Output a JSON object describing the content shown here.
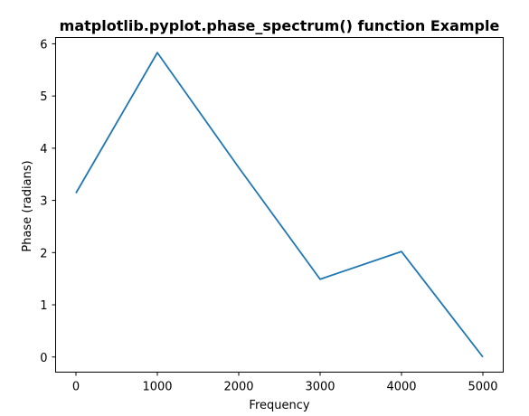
{
  "chart_data": {
    "type": "line",
    "title": "matplotlib.pyplot.phase_spectrum() function Example",
    "xlabel": "Frequency",
    "ylabel": "Phase (radians)",
    "xlim": [
      -250,
      5250
    ],
    "ylim": [
      -0.29,
      6.12
    ],
    "xticks": [
      0,
      1000,
      2000,
      3000,
      4000,
      5000
    ],
    "xtick_labels": [
      "0",
      "1000",
      "2000",
      "3000",
      "4000",
      "5000"
    ],
    "yticks": [
      0,
      1,
      2,
      3,
      4,
      5,
      6
    ],
    "ytick_labels": [
      "0",
      "1",
      "2",
      "3",
      "4",
      "5",
      "6"
    ],
    "grid": false,
    "series": [
      {
        "color": "#1f77b4",
        "x": [
          0,
          1000,
          2000,
          3000,
          4000,
          5000
        ],
        "y": [
          3.14,
          5.83,
          3.63,
          1.49,
          2.02,
          0.0
        ]
      }
    ]
  }
}
